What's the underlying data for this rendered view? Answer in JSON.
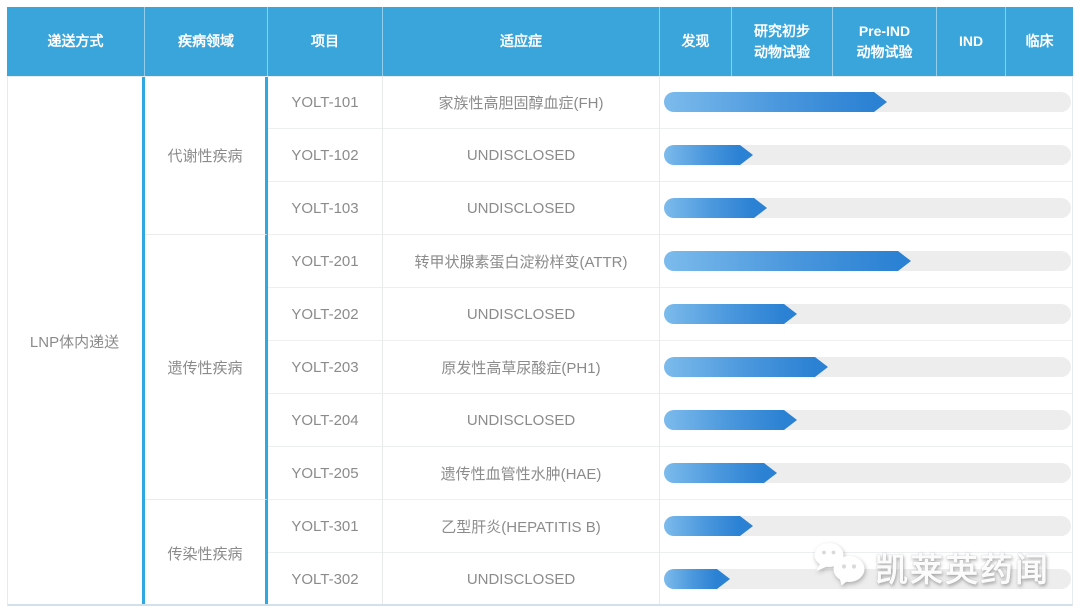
{
  "header": {
    "columns": [
      "递送方式",
      "疾病领域",
      "项目",
      "适应症",
      "发现",
      "研究初步\n动物试验",
      "Pre-IND\n动物试验",
      "IND",
      "临床"
    ]
  },
  "table": {
    "delivery": "LNP体内递送",
    "groups": [
      {
        "area": "代谢性疾病",
        "row_span": 3
      },
      {
        "area": "遗传性疾病",
        "row_span": 5
      },
      {
        "area": "传染性疾病",
        "row_span": 2
      }
    ]
  },
  "chart_data": {
    "type": "table",
    "title": "LNP体内递送管线进度 (pipeline progress)",
    "stages": [
      "发现",
      "研究初步动物试验",
      "Pre-IND动物试验",
      "IND",
      "临床"
    ],
    "stage_axis_pct": {
      "发现": [
        0,
        17.6
      ],
      "研究初步动物试验": [
        17.6,
        42.4
      ],
      "Pre-IND动物试验": [
        42.4,
        67.9
      ],
      "IND": [
        67.9,
        84.8
      ],
      "临床": [
        84.8,
        100
      ]
    },
    "rows": [
      {
        "project": "YOLT-101",
        "disease_area": "代谢性疾病",
        "indication": "家族性高胆固醇血症(FH)",
        "progress_pct": 54.7,
        "stage_reached": "Pre-IND动物试验"
      },
      {
        "project": "YOLT-102",
        "disease_area": "代谢性疾病",
        "indication": "UNDISCLOSED",
        "progress_pct": 21.8,
        "stage_reached": "研究初步动物试验"
      },
      {
        "project": "YOLT-103",
        "disease_area": "代谢性疾病",
        "indication": "UNDISCLOSED",
        "progress_pct": 25.2,
        "stage_reached": "研究初步动物试验"
      },
      {
        "project": "YOLT-201",
        "disease_area": "遗传性疾病",
        "indication": "转甲状腺素蛋白淀粉样变(ATTR)",
        "progress_pct": 60.8,
        "stage_reached": "Pre-IND动物试验"
      },
      {
        "project": "YOLT-202",
        "disease_area": "遗传性疾病",
        "indication": "UNDISCLOSED",
        "progress_pct": 32.6,
        "stage_reached": "研究初步动物试验"
      },
      {
        "project": "YOLT-203",
        "disease_area": "遗传性疾病",
        "indication": "原发性高草尿酸症(PH1)",
        "progress_pct": 40.2,
        "stage_reached": "研究初步动物试验"
      },
      {
        "project": "YOLT-204",
        "disease_area": "遗传性疾病",
        "indication": "UNDISCLOSED",
        "progress_pct": 32.6,
        "stage_reached": "研究初步动物试验"
      },
      {
        "project": "YOLT-205",
        "disease_area": "遗传性疾病",
        "indication": "遗传性血管性水肿(HAE)",
        "progress_pct": 27.7,
        "stage_reached": "研究初步动物试验"
      },
      {
        "project": "YOLT-301",
        "disease_area": "传染性疾病",
        "indication": "乙型肝炎(HEPATITIS B)",
        "progress_pct": 21.8,
        "stage_reached": "研究初步动物试验"
      },
      {
        "project": "YOLT-302",
        "disease_area": "传染性疾病",
        "indication": "UNDISCLOSED",
        "progress_pct": 16.2,
        "stage_reached": "发现"
      }
    ]
  },
  "watermark": {
    "text": "凯莱英药闻"
  },
  "colors": {
    "header_bg": "#3AA5DA",
    "separator_blue": "#2FA7E0",
    "bar_start": "#7CBBEC",
    "bar_end": "#2B81D3",
    "track": "#EDEDED"
  }
}
